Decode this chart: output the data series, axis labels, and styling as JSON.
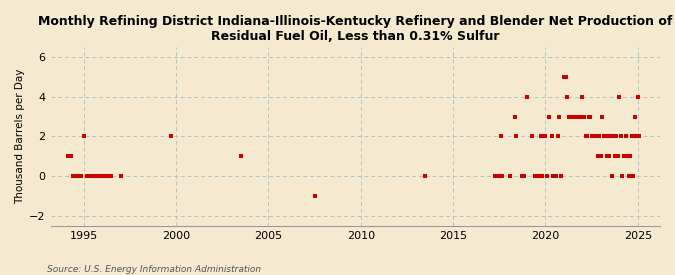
{
  "title": "Monthly Refining District Indiana-Illinois-Kentucky Refinery and Blender Net Production of\nResidual Fuel Oil, Less than 0.31% Sulfur",
  "ylabel": "Thousand Barrels per Day",
  "source": "Source: U.S. Energy Information Administration",
  "background_color": "#f5e9d0",
  "dot_color": "#cc0000",
  "grid_color": "#aec6c8",
  "ylim": [
    -2.5,
    6.5
  ],
  "xlim_left": 1993.2,
  "xlim_right": 2026.2,
  "yticks": [
    -2,
    0,
    2,
    4,
    6
  ],
  "xticks": [
    1995,
    2000,
    2005,
    2010,
    2015,
    2020,
    2025
  ],
  "points": [
    [
      1994,
      3,
      1.0
    ],
    [
      1994,
      4,
      1.0
    ],
    [
      1994,
      5,
      1.0
    ],
    [
      1994,
      6,
      0.0
    ],
    [
      1994,
      7,
      0.0
    ],
    [
      1994,
      9,
      0.0
    ],
    [
      1994,
      11,
      0.0
    ],
    [
      1995,
      1,
      2.0
    ],
    [
      1995,
      3,
      0.0
    ],
    [
      1995,
      4,
      0.0
    ],
    [
      1995,
      5,
      0.0
    ],
    [
      1995,
      6,
      0.0
    ],
    [
      1995,
      7,
      0.0
    ],
    [
      1995,
      8,
      0.0
    ],
    [
      1995,
      9,
      0.0
    ],
    [
      1995,
      10,
      0.0
    ],
    [
      1995,
      11,
      0.0
    ],
    [
      1995,
      12,
      0.0
    ],
    [
      1996,
      1,
      0.0
    ],
    [
      1996,
      2,
      0.0
    ],
    [
      1996,
      3,
      0.0
    ],
    [
      1996,
      4,
      0.0
    ],
    [
      1996,
      5,
      0.0
    ],
    [
      1996,
      7,
      0.0
    ],
    [
      1997,
      1,
      0.0
    ],
    [
      1999,
      10,
      2.0
    ],
    [
      2003,
      7,
      1.0
    ],
    [
      2007,
      7,
      -1.0
    ],
    [
      2013,
      7,
      0.0
    ],
    [
      2017,
      4,
      0.0
    ],
    [
      2017,
      5,
      0.0
    ],
    [
      2017,
      6,
      0.0
    ],
    [
      2017,
      8,
      2.0
    ],
    [
      2017,
      9,
      0.0
    ],
    [
      2018,
      2,
      0.0
    ],
    [
      2018,
      5,
      3.0
    ],
    [
      2018,
      6,
      2.0
    ],
    [
      2018,
      10,
      0.0
    ],
    [
      2018,
      11,
      0.0
    ],
    [
      2019,
      1,
      4.0
    ],
    [
      2019,
      4,
      2.0
    ],
    [
      2019,
      6,
      0.0
    ],
    [
      2019,
      9,
      0.0
    ],
    [
      2019,
      10,
      2.0
    ],
    [
      2019,
      11,
      0.0
    ],
    [
      2020,
      1,
      2.0
    ],
    [
      2020,
      2,
      0.0
    ],
    [
      2020,
      3,
      3.0
    ],
    [
      2020,
      5,
      2.0
    ],
    [
      2020,
      6,
      0.0
    ],
    [
      2020,
      8,
      0.0
    ],
    [
      2020,
      9,
      2.0
    ],
    [
      2020,
      10,
      3.0
    ],
    [
      2020,
      11,
      0.0
    ],
    [
      2021,
      1,
      5.0
    ],
    [
      2021,
      2,
      5.0
    ],
    [
      2021,
      3,
      4.0
    ],
    [
      2021,
      4,
      3.0
    ],
    [
      2021,
      5,
      3.0
    ],
    [
      2021,
      6,
      3.0
    ],
    [
      2021,
      7,
      3.0
    ],
    [
      2021,
      8,
      3.0
    ],
    [
      2021,
      9,
      3.0
    ],
    [
      2021,
      10,
      3.0
    ],
    [
      2021,
      11,
      3.0
    ],
    [
      2021,
      12,
      3.0
    ],
    [
      2022,
      1,
      4.0
    ],
    [
      2022,
      2,
      3.0
    ],
    [
      2022,
      3,
      2.0
    ],
    [
      2022,
      4,
      2.0
    ],
    [
      2022,
      5,
      3.0
    ],
    [
      2022,
      6,
      3.0
    ],
    [
      2022,
      7,
      2.0
    ],
    [
      2022,
      8,
      2.0
    ],
    [
      2022,
      9,
      2.0
    ],
    [
      2022,
      10,
      2.0
    ],
    [
      2022,
      11,
      1.0
    ],
    [
      2022,
      12,
      2.0
    ],
    [
      2023,
      1,
      1.0
    ],
    [
      2023,
      2,
      3.0
    ],
    [
      2023,
      3,
      2.0
    ],
    [
      2023,
      4,
      2.0
    ],
    [
      2023,
      5,
      1.0
    ],
    [
      2023,
      6,
      1.0
    ],
    [
      2023,
      7,
      2.0
    ],
    [
      2023,
      8,
      0.0
    ],
    [
      2023,
      9,
      2.0
    ],
    [
      2023,
      10,
      1.0
    ],
    [
      2023,
      11,
      2.0
    ],
    [
      2023,
      12,
      1.0
    ],
    [
      2024,
      1,
      4.0
    ],
    [
      2024,
      2,
      2.0
    ],
    [
      2024,
      3,
      0.0
    ],
    [
      2024,
      4,
      1.0
    ],
    [
      2024,
      5,
      2.0
    ],
    [
      2024,
      6,
      1.0
    ],
    [
      2024,
      7,
      0.0
    ],
    [
      2024,
      8,
      1.0
    ],
    [
      2024,
      9,
      2.0
    ],
    [
      2024,
      10,
      0.0
    ],
    [
      2024,
      11,
      3.0
    ],
    [
      2024,
      12,
      2.0
    ],
    [
      2025,
      1,
      4.0
    ],
    [
      2025,
      2,
      2.0
    ]
  ]
}
